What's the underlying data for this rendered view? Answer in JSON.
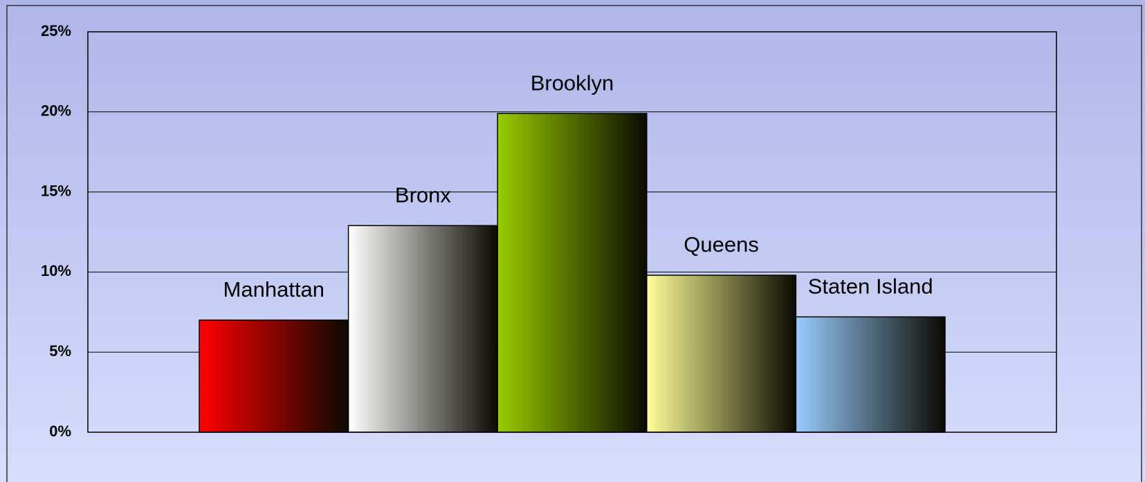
{
  "chart_data": {
    "type": "bar",
    "categories": [
      null
    ],
    "series": [
      {
        "name": "Manhattan",
        "color": "#ff0000",
        "values": [
          7.0
        ]
      },
      {
        "name": "Bronx",
        "color": "#ffffff",
        "values": [
          12.9
        ]
      },
      {
        "name": "Brooklyn",
        "color": "#99cc00",
        "values": [
          19.9
        ]
      },
      {
        "name": "Queens",
        "color": "#ffff99",
        "values": [
          9.8
        ]
      },
      {
        "name": "Staten Island",
        "color": "#99ccff",
        "values": [
          7.2
        ]
      }
    ],
    "ylim": [
      0,
      25
    ],
    "yticks": [
      {
        "value": 0,
        "label": "0%"
      },
      {
        "value": 5,
        "label": "5%"
      },
      {
        "value": 10,
        "label": "10%"
      },
      {
        "value": 15,
        "label": "15%"
      },
      {
        "value": 20,
        "label": "20%"
      },
      {
        "value": 25,
        "label": "25%"
      }
    ],
    "grid": true
  }
}
